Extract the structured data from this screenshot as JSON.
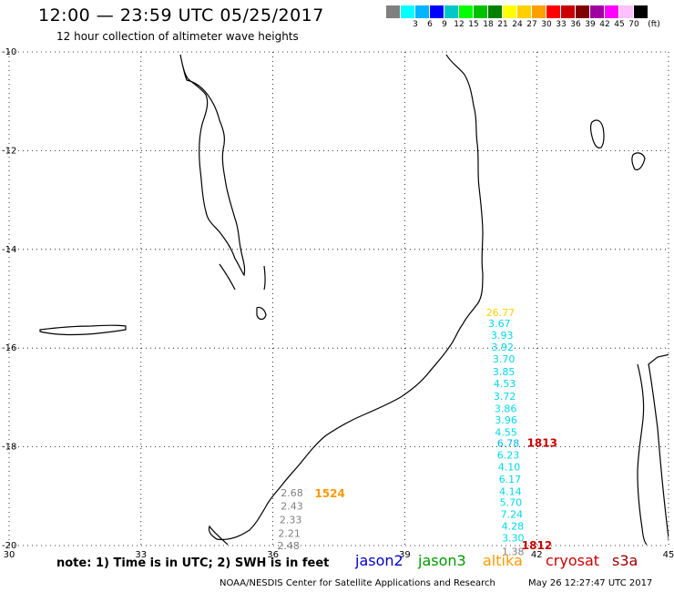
{
  "header": {
    "title": "12:00 — 23:59 UTC 05/25/2017",
    "subtitle": "12 hour collection of altimeter wave heights"
  },
  "legend": {
    "unit": "(ft)",
    "swatches": [
      {
        "color": "#808080",
        "label": ""
      },
      {
        "color": "#00ffff",
        "label": "3"
      },
      {
        "color": "#00b4ff",
        "label": "6"
      },
      {
        "color": "#0000ff",
        "label": "9"
      },
      {
        "color": "#00c8c8",
        "label": "12"
      },
      {
        "color": "#00ff00",
        "label": "15"
      },
      {
        "color": "#00c000",
        "label": "18"
      },
      {
        "color": "#008000",
        "label": "21"
      },
      {
        "color": "#ffff00",
        "label": "24"
      },
      {
        "color": "#ffd000",
        "label": "27"
      },
      {
        "color": "#ffa000",
        "label": "30"
      },
      {
        "color": "#ff0000",
        "label": "33"
      },
      {
        "color": "#c80000",
        "label": "36"
      },
      {
        "color": "#800000",
        "label": "39"
      },
      {
        "color": "#a000a0",
        "label": "42"
      },
      {
        "color": "#ff00ff",
        "label": "45"
      },
      {
        "color": "#ffc0ff",
        "label": "70"
      },
      {
        "color": "#000000",
        "label": ""
      }
    ]
  },
  "map": {
    "lon_range": [
      30,
      45
    ],
    "lat_range": [
      -20,
      -10
    ],
    "lon_ticks": [
      "30",
      "33",
      "36",
      "39",
      "42",
      "45"
    ],
    "lat_ticks": [
      "-10",
      "-12",
      "-14",
      "-16",
      "-18",
      "-20"
    ],
    "grid": "dotted"
  },
  "tracks": [
    {
      "name": "altika",
      "points": [
        {
          "lat": -15.28,
          "lon": 40.85,
          "label": "26.77",
          "color": "#ffd000"
        },
        {
          "lat": -15.5,
          "lon": 40.9,
          "label": "3.67",
          "color": "#00d8e8"
        },
        {
          "lat": -15.74,
          "lon": 40.96,
          "label": "3.93",
          "color": "#00d8e8"
        },
        {
          "lat": -15.98,
          "lon": 40.97,
          "label": "3.92",
          "color": "#00d8e8"
        },
        {
          "lat": -16.22,
          "lon": 41.0,
          "label": "3.70",
          "color": "#00d8e8"
        },
        {
          "lat": -16.48,
          "lon": 41.0,
          "label": "3.85",
          "color": "#00d8e8"
        },
        {
          "lat": -16.72,
          "lon": 41.02,
          "label": "4.53",
          "color": "#00d8e8"
        },
        {
          "lat": -16.97,
          "lon": 41.02,
          "label": "3.72",
          "color": "#00d8e8"
        },
        {
          "lat": -17.22,
          "lon": 41.04,
          "label": "3.86",
          "color": "#00d8e8"
        },
        {
          "lat": -17.45,
          "lon": 41.05,
          "label": "3.96",
          "color": "#00d8e8"
        },
        {
          "lat": -17.7,
          "lon": 41.05,
          "label": "4.55",
          "color": "#00d8e8"
        },
        {
          "lat": -17.92,
          "lon": 41.1,
          "label": "6.78",
          "color": "#00b4e0"
        },
        {
          "lat": -18.16,
          "lon": 41.1,
          "label": "6.23",
          "color": "#00d8e8"
        },
        {
          "lat": -18.4,
          "lon": 41.12,
          "label": "4.10",
          "color": "#00d8e8"
        },
        {
          "lat": -18.65,
          "lon": 41.14,
          "label": "6.17",
          "color": "#00d8e8"
        },
        {
          "lat": -18.9,
          "lon": 41.15,
          "label": "4.14",
          "color": "#00d8e8"
        },
        {
          "lat": -19.12,
          "lon": 41.16,
          "label": "5.70",
          "color": "#00d8e8"
        },
        {
          "lat": -19.36,
          "lon": 41.18,
          "label": "7.24",
          "color": "#00d8e8"
        },
        {
          "lat": -19.6,
          "lon": 41.2,
          "label": "4.28",
          "color": "#00d8e8"
        },
        {
          "lat": -19.84,
          "lon": 41.21,
          "label": "3.30",
          "color": "#00d8e8"
        },
        {
          "lat": -20.12,
          "lon": 41.21,
          "label": "1.38",
          "color": "#808080"
        }
      ]
    },
    {
      "name": "grey",
      "points": [
        {
          "lat": -18.93,
          "lon": 36.18,
          "label": "2.68",
          "color": "#808080"
        },
        {
          "lat": -19.2,
          "lon": 36.18,
          "label": "2.43",
          "color": "#808080"
        },
        {
          "lat": -19.47,
          "lon": 36.15,
          "label": "2.33",
          "color": "#808080"
        },
        {
          "lat": -19.75,
          "lon": 36.12,
          "label": "2.21",
          "color": "#808080"
        },
        {
          "lat": -20.0,
          "lon": 36.1,
          "label": "2.48",
          "color": "#808080"
        }
      ]
    }
  ],
  "time_labels": [
    {
      "lat": -17.92,
      "lon": 41.78,
      "label": "1813",
      "color": "#cc0000"
    },
    {
      "lat": -18.95,
      "lon": 36.95,
      "label": "1524",
      "color": "#ff9900"
    },
    {
      "lat": -20.0,
      "lon": 41.66,
      "label": "1812",
      "color": "#cc0000"
    }
  ],
  "footer": {
    "note": "note: 1) Time is in UTC; 2) SWH is in feet",
    "satellites": [
      {
        "name": "jason2",
        "color": "#0000cc"
      },
      {
        "name": "jason3",
        "color": "#009900"
      },
      {
        "name": "altika",
        "color": "#ff9900"
      },
      {
        "name": "cryosat",
        "color": "#cc0000"
      },
      {
        "name": "s3a",
        "color": "#990000"
      }
    ],
    "credit": "NOAA/NESDIS Center for Satellite Applications and Research",
    "timestamp": "May 26 12:27:47 UTC 2017"
  }
}
